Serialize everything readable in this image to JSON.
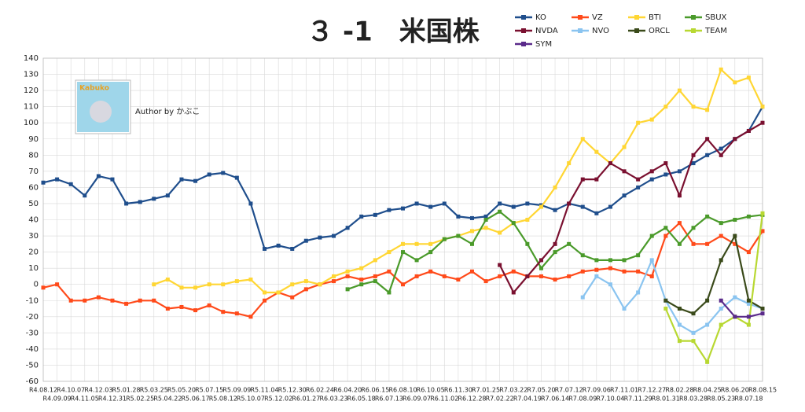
{
  "chart_data": {
    "type": "line",
    "title": "３ -1　米国株",
    "logo": "Kabuko",
    "author": "Author by かぶこ",
    "categories": [
      "R4.08.12",
      "R4.09.09",
      "R4.10.07",
      "R4.11.05",
      "R4.12.03",
      "R4.12.31",
      "R5.01.28",
      "R5.02.25",
      "R5.03.25",
      "R5.04.22",
      "R5.05.20",
      "R5.06.17",
      "R5.07.15",
      "R5.08.12",
      "R5.09.09",
      "R5.10.07",
      "R5.11.04",
      "R5.12.02",
      "R5.12.30",
      "R6.01.27",
      "R6.02.24",
      "R6.03.23",
      "R6.04.20",
      "R6.05.18",
      "R6.06.15",
      "R6.07.13",
      "R6.08.10",
      "R6.09.07",
      "R6.10.05",
      "R6.11.02",
      "R6.11.30",
      "R6.12.28",
      "R7.01.25",
      "R7.02.22",
      "R7.03.22",
      "R7.04.19",
      "R7.05.20",
      "R7.06.14",
      "R7.07.12",
      "R7.08.09",
      "R7.09.06",
      "R7.10.04",
      "R7.11.01",
      "R7.11.29",
      "R7.12.27",
      "R8.01.31",
      "R8.02.28",
      "R8.03.28",
      "R8.04.25",
      "R8.05.23",
      "R8.06.20",
      "R8.07.18",
      "R8.08.15"
    ],
    "series": [
      {
        "name": "KO",
        "color": "#1f4e8c",
        "values": [
          63,
          65,
          62,
          55,
          67,
          65,
          50,
          51,
          53,
          55,
          65,
          64,
          68,
          69,
          66,
          50,
          22,
          24,
          22,
          27,
          29,
          30,
          35,
          42,
          43,
          46,
          47,
          50,
          48,
          50,
          42,
          41,
          42,
          50,
          48,
          50,
          49,
          46,
          50,
          48,
          44,
          48,
          55,
          60,
          65,
          68,
          70,
          75,
          80,
          84,
          90,
          95,
          110
        ]
      },
      {
        "name": "VZ",
        "color": "#ff4a1a",
        "values": [
          -2,
          0,
          -10,
          -10,
          -8,
          -10,
          -12,
          -10,
          -10,
          -15,
          -14,
          -16,
          -13,
          -17,
          -18,
          -20,
          -10,
          -5,
          -8,
          -3,
          0,
          2,
          5,
          3,
          5,
          8,
          0,
          5,
          8,
          5,
          3,
          8,
          2,
          5,
          8,
          5,
          5,
          3,
          5,
          8,
          9,
          10,
          8,
          8,
          5,
          30,
          38,
          25,
          25,
          30,
          25,
          20,
          33
        ]
      },
      {
        "name": "BTI",
        "color": "#ffd633",
        "values": [
          null,
          null,
          null,
          null,
          null,
          null,
          null,
          null,
          0,
          3,
          -2,
          -2,
          0,
          0,
          2,
          3,
          -5,
          -5,
          0,
          2,
          0,
          5,
          8,
          10,
          15,
          20,
          25,
          25,
          25,
          28,
          30,
          33,
          35,
          32,
          38,
          40,
          48,
          60,
          75,
          90,
          82,
          75,
          85,
          100,
          102,
          110,
          120,
          110,
          108,
          133,
          125,
          128,
          110
        ]
      },
      {
        "name": "SBUX",
        "color": "#4a9a2a",
        "values": [
          null,
          null,
          null,
          null,
          null,
          null,
          null,
          null,
          null,
          null,
          null,
          null,
          null,
          null,
          null,
          null,
          null,
          null,
          null,
          null,
          null,
          null,
          -3,
          0,
          2,
          -5,
          20,
          15,
          20,
          28,
          30,
          25,
          40,
          45,
          38,
          25,
          10,
          20,
          25,
          18,
          15,
          15,
          15,
          18,
          30,
          35,
          25,
          35,
          42,
          38,
          40,
          42,
          43
        ]
      },
      {
        "name": "NVDA",
        "color": "#7a1030",
        "values": [
          null,
          null,
          null,
          null,
          null,
          null,
          null,
          null,
          null,
          null,
          null,
          null,
          null,
          null,
          null,
          null,
          null,
          null,
          null,
          null,
          null,
          null,
          null,
          null,
          null,
          null,
          null,
          null,
          null,
          null,
          null,
          null,
          null,
          12,
          -5,
          5,
          15,
          25,
          50,
          65,
          65,
          75,
          70,
          65,
          70,
          75,
          55,
          80,
          90,
          80,
          90,
          95,
          100
        ]
      },
      {
        "name": "NVO",
        "color": "#8ac4f0",
        "values": [
          null,
          null,
          null,
          null,
          null,
          null,
          null,
          null,
          null,
          null,
          null,
          null,
          null,
          null,
          null,
          null,
          null,
          null,
          null,
          null,
          null,
          null,
          null,
          null,
          null,
          null,
          null,
          null,
          null,
          null,
          null,
          null,
          null,
          null,
          null,
          null,
          null,
          null,
          null,
          -8,
          5,
          0,
          -15,
          -5,
          15,
          -10,
          -25,
          -30,
          -25,
          -15,
          -8,
          -12,
          -15
        ]
      },
      {
        "name": "ORCL",
        "color": "#3a4a1a",
        "values": [
          null,
          null,
          null,
          null,
          null,
          null,
          null,
          null,
          null,
          null,
          null,
          null,
          null,
          null,
          null,
          null,
          null,
          null,
          null,
          null,
          null,
          null,
          null,
          null,
          null,
          null,
          null,
          null,
          null,
          null,
          null,
          null,
          null,
          null,
          null,
          null,
          null,
          null,
          null,
          null,
          null,
          null,
          null,
          null,
          null,
          -10,
          -15,
          -18,
          -10,
          15,
          30,
          -10,
          -15
        ]
      },
      {
        "name": "TEAM",
        "color": "#b8d832",
        "values": [
          null,
          null,
          null,
          null,
          null,
          null,
          null,
          null,
          null,
          null,
          null,
          null,
          null,
          null,
          null,
          null,
          null,
          null,
          null,
          null,
          null,
          null,
          null,
          null,
          null,
          null,
          null,
          null,
          null,
          null,
          null,
          null,
          null,
          null,
          null,
          null,
          null,
          null,
          null,
          null,
          null,
          null,
          null,
          null,
          null,
          -15,
          -35,
          -35,
          -48,
          -25,
          -20,
          -25,
          44
        ]
      },
      {
        "name": "SYM",
        "color": "#5a2a8a",
        "values": [
          null,
          null,
          null,
          null,
          null,
          null,
          null,
          null,
          null,
          null,
          null,
          null,
          null,
          null,
          null,
          null,
          null,
          null,
          null,
          null,
          null,
          null,
          null,
          null,
          null,
          null,
          null,
          null,
          null,
          null,
          null,
          null,
          null,
          null,
          null,
          null,
          null,
          null,
          null,
          null,
          null,
          null,
          null,
          null,
          null,
          null,
          null,
          null,
          null,
          -10,
          -20,
          -20,
          -18
        ]
      }
    ],
    "ylim": [
      -60,
      140
    ],
    "yticks": [
      -60,
      -50,
      -40,
      -30,
      -20,
      -10,
      0,
      10,
      20,
      30,
      40,
      50,
      60,
      70,
      80,
      90,
      100,
      110,
      120,
      130,
      140
    ],
    "grid": true
  }
}
